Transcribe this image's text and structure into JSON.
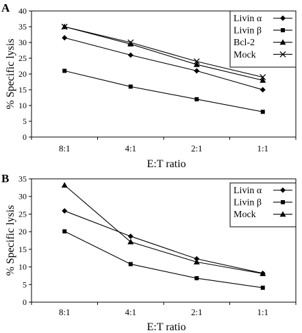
{
  "figure": {
    "panels": [
      {
        "letter": "A"
      },
      {
        "letter": "B"
      }
    ]
  },
  "chart_data": [
    {
      "type": "line",
      "panel": "A",
      "title": "",
      "xlabel": "E:T ratio",
      "ylabel": "% Specific lysis",
      "categories": [
        "8:1",
        "4:1",
        "2:1",
        "1:1"
      ],
      "ylim": [
        0,
        40
      ],
      "yticks": [
        0,
        5,
        10,
        15,
        20,
        25,
        30,
        35,
        40
      ],
      "grid": false,
      "legend_position": "top-right",
      "series": [
        {
          "name": "Livin α",
          "marker": "diamond",
          "values": [
            31.5,
            26,
            21,
            15
          ]
        },
        {
          "name": "Livin β",
          "marker": "square",
          "values": [
            21,
            16,
            12,
            8
          ]
        },
        {
          "name": "Bcl-2",
          "marker": "triangle",
          "values": [
            35,
            29.5,
            23,
            18
          ]
        },
        {
          "name": "Mock",
          "marker": "x",
          "values": [
            35,
            30,
            24,
            19
          ]
        }
      ]
    },
    {
      "type": "line",
      "panel": "B",
      "title": "",
      "xlabel": "E:T ratio",
      "ylabel": "% Specific lysis",
      "categories": [
        "8:1",
        "4:1",
        "2:1",
        "1:1"
      ],
      "ylim": [
        0,
        35
      ],
      "yticks": [
        0,
        5,
        10,
        15,
        20,
        25,
        30,
        35
      ],
      "grid": false,
      "legend_position": "top-right",
      "series": [
        {
          "name": "Livin α",
          "marker": "diamond",
          "values": [
            25.9,
            18.7,
            12.3,
            8.2
          ]
        },
        {
          "name": "Livin β",
          "marker": "square",
          "values": [
            20.1,
            10.8,
            6.8,
            4.1
          ]
        },
        {
          "name": "Mock",
          "marker": "triangle",
          "values": [
            33.2,
            17.1,
            11.4,
            8.1
          ]
        }
      ]
    }
  ]
}
